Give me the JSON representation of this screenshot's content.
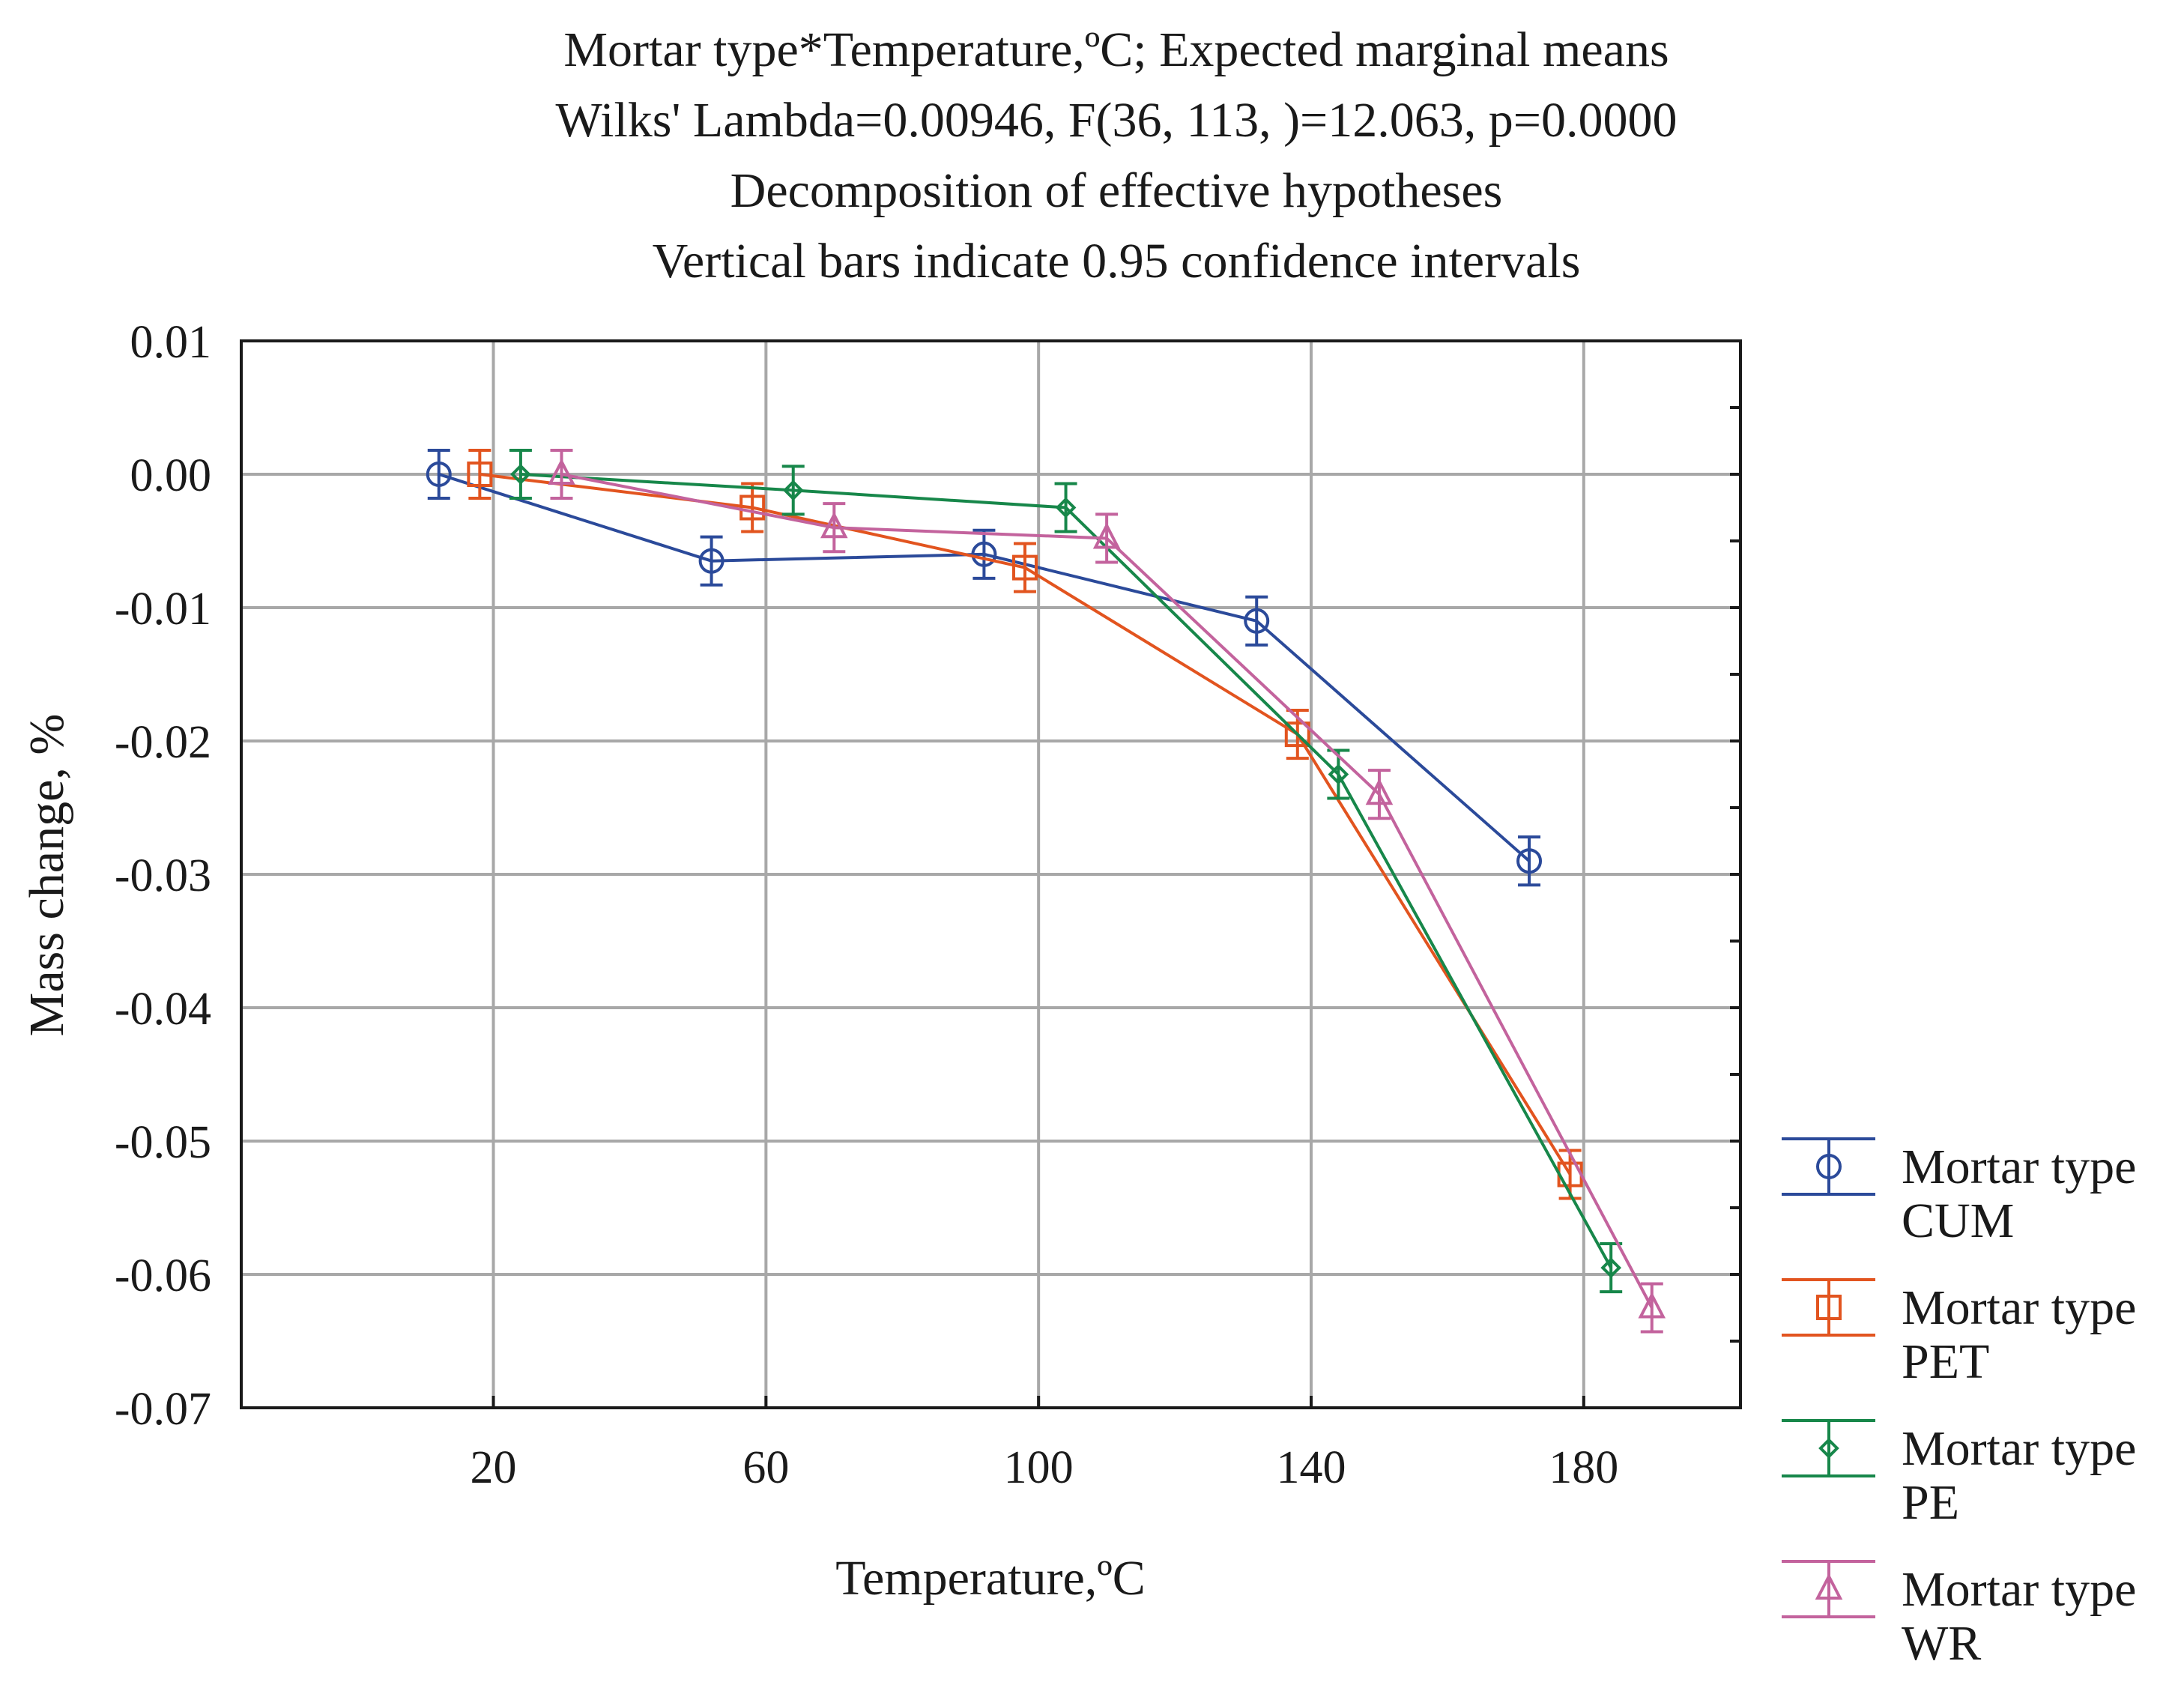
{
  "chart_data": {
    "type": "line",
    "title_lines": [
      "Mortar type*Temperature,ºC; Expected marginal means",
      "Wilks' Lambda=0.00946, F(36, 113, )=12.063, p=0.0000",
      "Decomposition of effective hypotheses",
      "Vertical bars indicate 0.95 confidence intervals"
    ],
    "xlabel": "Temperature,ºC",
    "ylabel": "Mass change, %",
    "x_ticks": [
      20,
      60,
      100,
      140,
      180
    ],
    "x_tick_labels": [
      "20",
      "60",
      "100",
      "140",
      "180"
    ],
    "y_ticks": [
      0.01,
      0.0,
      -0.01,
      -0.02,
      -0.03,
      -0.04,
      -0.05,
      -0.06,
      -0.07
    ],
    "y_tick_labels": [
      "0.01",
      "0.00",
      "-0.01",
      "-0.02",
      "-0.03",
      "-0.04",
      "-0.05",
      "-0.06",
      "-0.07"
    ],
    "xlim": [
      -17,
      203
    ],
    "ylim": [
      -0.07,
      0.01
    ],
    "grid": true,
    "legend_position": "right-bottom",
    "series": [
      {
        "name": "Mortar type CUM",
        "legend_line1": "Mortar type",
        "legend_line2": "CUM",
        "color": "#2b4a9a",
        "marker": "circle",
        "x": [
          12,
          52,
          92,
          132,
          172
        ],
        "y": [
          0.0,
          -0.0065,
          -0.006,
          -0.011,
          -0.029
        ],
        "err": [
          0.0018,
          0.0018,
          0.0018,
          0.0018,
          0.0018
        ]
      },
      {
        "name": "Mortar type PET",
        "legend_line1": "Mortar type",
        "legend_line2": "PET",
        "color": "#e2541f",
        "marker": "square",
        "x": [
          18,
          58,
          98,
          138,
          178
        ],
        "y": [
          0.0,
          -0.0025,
          -0.007,
          -0.0195,
          -0.0525
        ],
        "err": [
          0.0018,
          0.0018,
          0.0018,
          0.0018,
          0.0018
        ]
      },
      {
        "name": "Mortar type PE",
        "legend_line1": "Mortar type",
        "legend_line2": "PE",
        "color": "#17874a",
        "marker": "diamond",
        "x": [
          24,
          64,
          104,
          144,
          184
        ],
        "y": [
          0.0,
          -0.0012,
          -0.0025,
          -0.0225,
          -0.0595
        ],
        "err": [
          0.0018,
          0.0018,
          0.0018,
          0.0018,
          0.0018
        ]
      },
      {
        "name": "Mortar type WR",
        "legend_line1": "Mortar type",
        "legend_line2": "WR",
        "color": "#c3639d",
        "marker": "triangle",
        "x": [
          30,
          70,
          110,
          150,
          190
        ],
        "y": [
          0.0,
          -0.004,
          -0.0048,
          -0.024,
          -0.0625
        ],
        "err": [
          0.0018,
          0.0018,
          0.0018,
          0.0018,
          0.0018
        ]
      }
    ]
  }
}
